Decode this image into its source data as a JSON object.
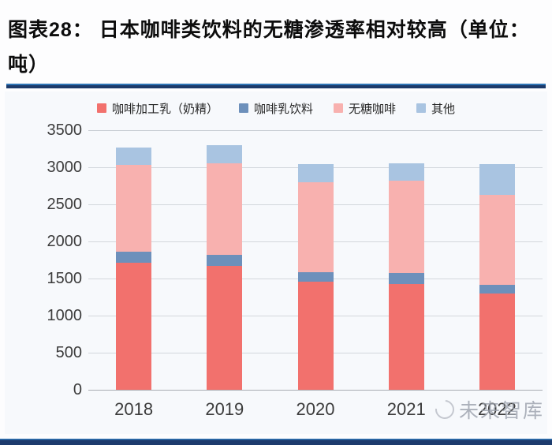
{
  "header": {
    "title_lines": [
      "图表28：  日本咖啡类饮料的无糖渗透率相对较高（单位：",
      "吨）"
    ]
  },
  "watermark": {
    "text": "未来智库",
    "logo": "circle-swirl-logo"
  },
  "colors": {
    "divider_navy": "#1c3a6a",
    "divider_light_blue": "#2e74b5",
    "gridline": "#d3d7dc",
    "axis_text": "#3c3c3c"
  },
  "chart_data": {
    "type": "bar",
    "stacked": true,
    "title": "日本咖啡类饮料的无糖渗透率相对较高（单位：吨）",
    "categories": [
      "2018",
      "2019",
      "2020",
      "2021",
      "2022"
    ],
    "series": [
      {
        "name": "咖啡加工乳（奶精）",
        "color": "#f2716d",
        "values": [
          1710,
          1670,
          1460,
          1430,
          1300
        ]
      },
      {
        "name": "咖啡乳饮料",
        "color": "#6d90bb",
        "values": [
          150,
          150,
          130,
          140,
          110
        ]
      },
      {
        "name": "无糖咖啡",
        "color": "#f8b1af",
        "values": [
          1170,
          1230,
          1210,
          1250,
          1220
        ]
      },
      {
        "name": "其他",
        "color": "#a9c4e1",
        "values": [
          240,
          250,
          240,
          230,
          410
        ]
      }
    ],
    "totals": [
      3270,
      3300,
      3040,
      3050,
      3040
    ],
    "ylim": [
      0,
      3500
    ],
    "yticks": [
      0,
      500,
      1000,
      1500,
      2000,
      2500,
      3000,
      3500
    ],
    "xlabel": "",
    "ylabel": "",
    "grid": true,
    "legend_position": "top"
  }
}
